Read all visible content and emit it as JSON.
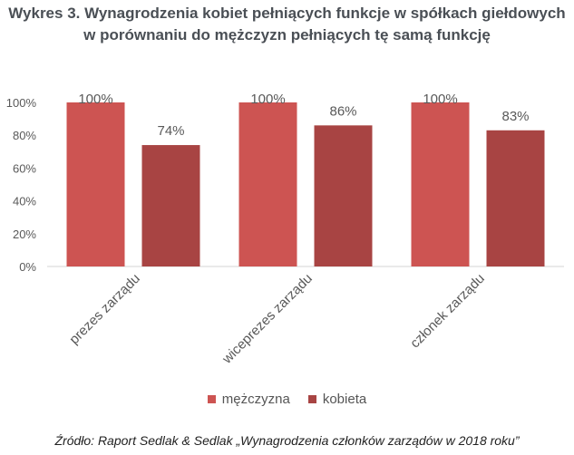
{
  "title_line1": "Wykres 3. Wynagrodzenia kobiet pełniących funkcje w spółkach giełdowych",
  "title_line2": "w porównaniu do mężczyzn pełniących tę samą funkcję",
  "source": "Źródło: Raport Sedlak & Sedlak „Wynagrodzenia członków zarządów w 2018 roku”",
  "colors": {
    "men": "#cd5452",
    "women": "#a84443",
    "axis": "#d4d4d4",
    "text": "#595959"
  },
  "chart_data": {
    "type": "bar",
    "categories": [
      "prezes zarządu",
      "wiceprezes zarządu",
      "członek zarządu"
    ],
    "series": [
      {
        "name": "mężczyzna",
        "values": [
          100,
          100,
          100
        ],
        "labels": [
          "100%",
          "100%",
          "100%"
        ]
      },
      {
        "name": "kobieta",
        "values": [
          74,
          86,
          83
        ],
        "labels": [
          "74%",
          "86%",
          "83%"
        ]
      }
    ],
    "ylim": [
      0,
      100
    ],
    "yticks": [
      0,
      20,
      40,
      60,
      80,
      100
    ],
    "ytick_labels": [
      "0%",
      "20%",
      "40%",
      "60%",
      "80%",
      "100%"
    ],
    "grid": false,
    "legend_position": "bottom"
  }
}
